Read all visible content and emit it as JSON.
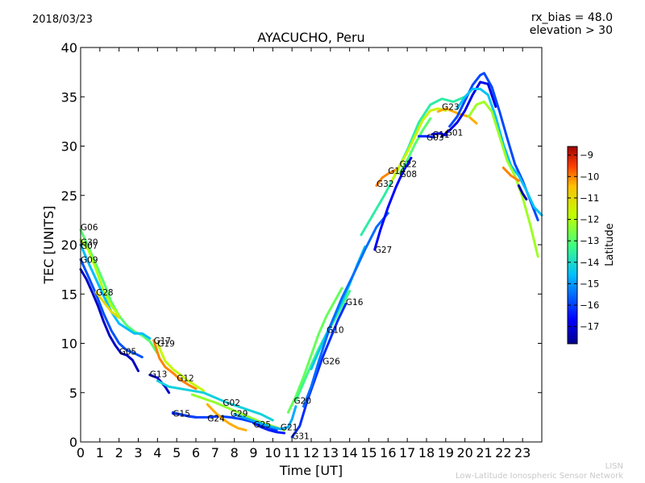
{
  "header": {
    "date": "2018/03/23",
    "rx_bias": "rx_bias = 48.0",
    "elevation": "elevation > 30"
  },
  "watermark": {
    "line1": "LISN",
    "line2": "Low-Latitude Ionospheric Sensor Network"
  },
  "chart_data": {
    "type": "scatter",
    "title": "AYACUCHO, Peru",
    "xlabel": "Time [UT]",
    "ylabel": "TEC [UNITS]",
    "xlim": [
      0,
      24
    ],
    "ylim": [
      0,
      40
    ],
    "xticks": [
      0,
      1,
      2,
      3,
      4,
      5,
      6,
      7,
      8,
      9,
      10,
      11,
      12,
      13,
      14,
      15,
      16,
      17,
      18,
      19,
      20,
      21,
      22,
      23
    ],
    "yticks": [
      0,
      5,
      10,
      15,
      20,
      25,
      30,
      35,
      40
    ],
    "grid": false,
    "colorbar": {
      "label": "Latitude",
      "min": -17.8,
      "max": -8.6,
      "ticks": [
        -9,
        -10,
        -11,
        -12,
        -13,
        -14,
        -15,
        -16,
        -17
      ],
      "colors": [
        "#00008f",
        "#0000ff",
        "#0080ff",
        "#00ffff",
        "#80ff80",
        "#ffff00",
        "#ff8000",
        "#ff0000",
        "#800000"
      ]
    },
    "series": [
      {
        "name": "G06",
        "label_x": 0.0,
        "label_y": 21.8,
        "lat": -13.0,
        "x": [
          0,
          0.4,
          0.8,
          1.2,
          1.6,
          2.0,
          2.4,
          2.8,
          3.2,
          3.6,
          4.0
        ],
        "y": [
          21.5,
          19.8,
          18.0,
          16.2,
          14.2,
          12.8,
          11.8,
          11.2,
          10.8,
          10.2,
          9.0
        ]
      },
      {
        "name": "G30",
        "label_x": 0.0,
        "label_y": 20.3,
        "lat": -12.0,
        "x": [
          0,
          0.4,
          0.8,
          1.2,
          1.6,
          2.0
        ],
        "y": [
          20.5,
          19.5,
          17.5,
          15.3,
          13.8,
          12.8
        ]
      },
      {
        "name": "G07",
        "label_x": 0.0,
        "label_y": 19.9,
        "lat": -14.6,
        "x": [
          0,
          0.4,
          0.8,
          1.2,
          1.6,
          2.0,
          2.4,
          2.8,
          3.2,
          3.6
        ],
        "y": [
          20.0,
          18.2,
          16.5,
          14.8,
          13.2,
          12.0,
          11.5,
          11.0,
          11.0,
          10.5
        ]
      },
      {
        "name": "G09",
        "label_x": 0.0,
        "label_y": 18.5,
        "lat": -15.8,
        "x": [
          0,
          0.4,
          0.8,
          1.2,
          1.6,
          2.0,
          2.4,
          2.8,
          3.2
        ],
        "y": [
          18.5,
          16.8,
          15.0,
          13.0,
          11.3,
          10.0,
          9.3,
          9.0,
          8.6
        ]
      },
      {
        "name": "G28",
        "label_x": 0.8,
        "label_y": 15.2,
        "lat": -11.0,
        "x": [
          0.8,
          1.2,
          1.6,
          2.0
        ],
        "y": [
          15.2,
          14.2,
          13.2,
          12.6
        ]
      },
      {
        "name": "G05",
        "label_x": 2.0,
        "label_y": 9.2,
        "lat": -17.3,
        "x": [
          0,
          0.3,
          0.6,
          0.9,
          1.2,
          1.5,
          1.8,
          2.1,
          2.4,
          2.7,
          3.0
        ],
        "y": [
          17.5,
          16.5,
          15.2,
          13.8,
          12.2,
          10.8,
          9.8,
          9.0,
          8.8,
          8.3,
          7.2
        ]
      },
      {
        "name": "G17",
        "label_x": 3.8,
        "label_y": 10.3,
        "lat": -10.0,
        "x": [
          3.8,
          4.1,
          4.4,
          4.8,
          5.2,
          5.6,
          6.0
        ],
        "y": [
          10.3,
          8.5,
          7.6,
          7.0,
          6.3,
          5.8,
          5.4
        ]
      },
      {
        "name": "G19",
        "label_x": 4.0,
        "label_y": 10.0,
        "lat": -11.7,
        "x": [
          4.0,
          4.4,
          4.8,
          5.2,
          5.6,
          6.0,
          6.4
        ],
        "y": [
          10.0,
          8.2,
          7.4,
          6.8,
          6.2,
          5.7,
          5.2
        ]
      },
      {
        "name": "G13",
        "label_x": 3.6,
        "label_y": 6.9,
        "lat": -17.2,
        "x": [
          3.6,
          4.0,
          4.4,
          4.6
        ],
        "y": [
          6.8,
          6.5,
          5.6,
          5.0
        ]
      },
      {
        "name": "G12",
        "label_x": 5.0,
        "label_y": 6.5,
        "lat": -14.2,
        "x": [
          4.0,
          4.6,
          5.2,
          5.8,
          6.4,
          7.0,
          7.6,
          8.2,
          8.8,
          9.4,
          10.0
        ],
        "y": [
          6.2,
          5.6,
          5.4,
          5.2,
          5.0,
          4.5,
          4.0,
          3.6,
          3.2,
          2.8,
          2.2
        ]
      },
      {
        "name": "G15",
        "label_x": 4.8,
        "label_y": 2.9,
        "lat": -17.4,
        "x": [
          4.8,
          5.2,
          5.6,
          6.0
        ],
        "y": [
          2.9,
          2.8,
          2.6,
          2.5
        ]
      },
      {
        "name": "G24",
        "label_x": 6.6,
        "label_y": 2.4,
        "lat": -16.0,
        "x": [
          4.8,
          5.4,
          6.0,
          6.6,
          7.2,
          7.8,
          8.4,
          9.0,
          9.6,
          10.2
        ],
        "y": [
          3.0,
          2.7,
          2.5,
          2.5,
          2.6,
          2.5,
          2.3,
          2.0,
          1.6,
          1.2
        ]
      },
      {
        "name": "G02",
        "label_x": 7.4,
        "label_y": 4.0,
        "lat": -12.3,
        "x": [
          5.8,
          6.4,
          7.0,
          7.6,
          8.2,
          8.8,
          9.4,
          10.0,
          10.6
        ],
        "y": [
          4.8,
          4.4,
          4.0,
          3.5,
          3.0,
          2.5,
          2.0,
          1.6,
          1.2
        ]
      },
      {
        "name": "G29",
        "label_x": 7.8,
        "label_y": 2.9,
        "lat": -10.3,
        "x": [
          6.6,
          7.0,
          7.4,
          7.8,
          8.2,
          8.6
        ],
        "y": [
          3.8,
          3.0,
          2.3,
          1.8,
          1.4,
          1.2
        ]
      },
      {
        "name": "G25",
        "label_x": 9.0,
        "label_y": 1.8,
        "lat": -16.4,
        "x": [
          9.0,
          9.4,
          9.8,
          10.2,
          10.6
        ],
        "y": [
          1.9,
          1.5,
          1.2,
          1.0,
          0.9
        ]
      },
      {
        "name": "G21",
        "label_x": 10.4,
        "label_y": 1.5,
        "lat": -14.8,
        "x": [
          8.0,
          8.6,
          9.2,
          9.8,
          10.4,
          10.8,
          11.0,
          11.2
        ],
        "y": [
          2.8,
          2.4,
          2.0,
          1.6,
          1.3,
          1.5,
          2.3,
          3.6
        ]
      },
      {
        "name": "G20",
        "label_x": 11.1,
        "label_y": 4.2,
        "lat": -12.8,
        "x": [
          10.8,
          11.2,
          11.6,
          12.0,
          12.4,
          12.8,
          13.2,
          13.6
        ],
        "y": [
          3.0,
          4.6,
          6.6,
          8.8,
          11.0,
          12.8,
          14.2,
          15.6
        ]
      },
      {
        "name": "G31",
        "label_x": 11.0,
        "label_y": 0.6,
        "lat": -16.2,
        "x": [
          11.0,
          11.4,
          11.8,
          12.2,
          12.6,
          13.0,
          13.4,
          13.8
        ],
        "y": [
          0.5,
          1.6,
          4.2,
          6.4,
          8.6,
          10.5,
          12.4,
          14.0
        ]
      },
      {
        "name": "G26",
        "label_x": 12.6,
        "label_y": 8.2,
        "lat": -13.3,
        "x": [
          11.2,
          11.6,
          12.0,
          12.4,
          12.8,
          13.2,
          13.6,
          14.0
        ],
        "y": [
          4.2,
          6.0,
          7.8,
          9.5,
          11.0,
          12.3,
          13.8,
          15.3
        ]
      },
      {
        "name": "G10",
        "label_x": 12.8,
        "label_y": 11.4,
        "lat": -14.4,
        "x": [
          12.0,
          12.4,
          12.8,
          13.2,
          13.6,
          14.0,
          14.4,
          14.8
        ],
        "y": [
          7.4,
          9.2,
          11.0,
          12.6,
          14.2,
          16.0,
          18.0,
          19.8
        ]
      },
      {
        "name": "G16",
        "label_x": 13.8,
        "label_y": 14.2,
        "lat": -15.5,
        "x": [
          11.6,
          12.0,
          12.4,
          13.0,
          13.6,
          14.2,
          14.8,
          15.4,
          16.0
        ],
        "y": [
          3.6,
          5.6,
          8.2,
          11.8,
          14.6,
          17.0,
          19.5,
          21.8,
          23.2
        ]
      },
      {
        "name": "G27",
        "label_x": 15.3,
        "label_y": 19.5,
        "lat": -16.7,
        "x": [
          15.3,
          15.6,
          16.0,
          16.4,
          16.8,
          17.2
        ],
        "y": [
          19.5,
          21.5,
          23.8,
          25.8,
          27.5,
          28.8
        ]
      },
      {
        "name": "G32",
        "label_x": 15.4,
        "label_y": 26.2,
        "lat": -10.0,
        "x": [
          15.4,
          15.7,
          16.0,
          16.4
        ],
        "y": [
          26.0,
          26.8,
          27.2,
          27.6
        ]
      },
      {
        "name": "G14",
        "label_x": 16.0,
        "label_y": 27.5,
        "lat": -13.6,
        "x": [
          14.6,
          15.2,
          15.8,
          16.4,
          17.0,
          17.6,
          18.2,
          18.8,
          19.4,
          20.0
        ],
        "y": [
          21.0,
          23.0,
          25.0,
          27.2,
          29.6,
          32.4,
          34.2,
          34.8,
          34.5,
          35.0
        ]
      },
      {
        "name": "G22",
        "label_x": 16.6,
        "label_y": 28.2,
        "lat": -11.6,
        "x": [
          16.2,
          16.6,
          17.0,
          17.4,
          17.8,
          18.2,
          18.6,
          19.0
        ],
        "y": [
          26.5,
          28.0,
          29.4,
          31.0,
          32.6,
          33.6,
          33.8,
          33.6
        ]
      },
      {
        "name": "G08",
        "label_x": 16.6,
        "label_y": 27.2,
        "lat": -13.0,
        "x": [
          16.6,
          17.0,
          17.4,
          17.8,
          18.2
        ],
        "y": [
          27.2,
          28.6,
          30.2,
          31.6,
          32.8
        ]
      },
      {
        "name": "G23",
        "label_x": 18.8,
        "label_y": 34.0,
        "lat": -10.3,
        "x": [
          18.6,
          19.0,
          19.4,
          19.8,
          20.2,
          20.6
        ],
        "y": [
          33.5,
          33.8,
          33.5,
          33.2,
          33.0,
          32.3
        ]
      },
      {
        "name": "G03",
        "label_x": 18.0,
        "label_y": 30.9,
        "lat": -16.3,
        "x": [
          17.6,
          18.0,
          18.4
        ],
        "y": [
          31.0,
          31.0,
          30.9
        ]
      },
      {
        "name": "G11",
        "label_x": 18.3,
        "label_y": 31.2,
        "lat": -17.0,
        "x": [
          18.3,
          18.7,
          19.0
        ],
        "y": [
          31.2,
          31.3,
          31.1
        ]
      },
      {
        "name": "G01",
        "label_x": 19.0,
        "label_y": 31.4,
        "lat": -16.9,
        "x": [
          18.8,
          19.2,
          19.6,
          20.0,
          20.4,
          20.8,
          21.2,
          21.6
        ],
        "y": [
          31.0,
          31.6,
          32.4,
          33.6,
          35.2,
          36.5,
          36.3,
          34.0
        ]
      },
      {
        "name": "",
        "label_x": null,
        "label_y": null,
        "lat": -15.9,
        "x": [
          19.2,
          19.6,
          20.0,
          20.4,
          20.8,
          21.0,
          21.4,
          21.8,
          22.2,
          22.6,
          23.0,
          23.4,
          23.8
        ],
        "y": [
          32.0,
          33.0,
          34.6,
          36.2,
          37.2,
          37.4,
          36.0,
          33.5,
          30.8,
          28.2,
          26.5,
          24.5,
          22.5
        ]
      },
      {
        "name": "",
        "label_x": null,
        "label_y": null,
        "lat": -14.5,
        "x": [
          19.6,
          20.0,
          20.4,
          20.8,
          21.2,
          21.6,
          22.0,
          22.4,
          22.8,
          23.2,
          23.6,
          24.0
        ],
        "y": [
          33.8,
          35.0,
          35.8,
          35.8,
          35.2,
          33.0,
          30.2,
          28.0,
          27.0,
          25.5,
          23.8,
          23.0
        ]
      },
      {
        "name": "",
        "label_x": null,
        "label_y": null,
        "lat": -12.2,
        "x": [
          20.2,
          20.6,
          21.0,
          21.4,
          21.8,
          22.2,
          22.6,
          23.0,
          23.4,
          23.8
        ],
        "y": [
          33.0,
          34.2,
          34.5,
          33.5,
          31.0,
          28.5,
          27.0,
          24.8,
          22.0,
          18.8
        ]
      },
      {
        "name": "",
        "label_x": null,
        "label_y": null,
        "lat": -10.0,
        "x": [
          22.0,
          22.4,
          22.8
        ],
        "y": [
          27.8,
          27.0,
          26.5
        ]
      },
      {
        "name": "",
        "label_x": null,
        "label_y": null,
        "lat": -17.5,
        "x": [
          22.8,
          23.0,
          23.2
        ],
        "y": [
          26.0,
          25.2,
          24.6
        ]
      }
    ]
  }
}
